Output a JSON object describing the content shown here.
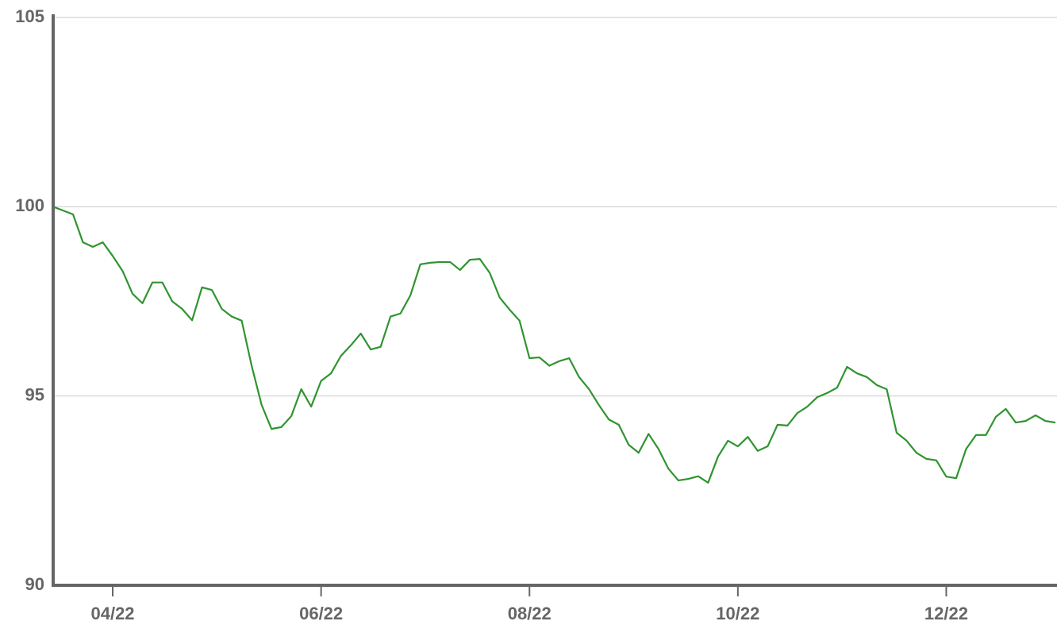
{
  "chart_data": {
    "type": "line",
    "categories": [
      null,
      null,
      null,
      null,
      null,
      null,
      "04/22",
      null,
      null,
      null,
      null,
      null,
      null,
      null,
      null,
      null,
      null,
      null,
      null,
      null,
      null,
      null,
      null,
      null,
      null,
      null,
      null,
      "06/22",
      null,
      null,
      null,
      null,
      null,
      null,
      null,
      null,
      null,
      null,
      null,
      null,
      null,
      null,
      null,
      null,
      null,
      null,
      null,
      null,
      "08/22",
      null,
      null,
      null,
      null,
      null,
      null,
      null,
      null,
      null,
      null,
      null,
      null,
      null,
      null,
      null,
      null,
      null,
      null,
      null,
      null,
      "10/22",
      null,
      null,
      null,
      null,
      null,
      null,
      null,
      null,
      null,
      null,
      null,
      null,
      null,
      null,
      null,
      null,
      null,
      null,
      null,
      null,
      "12/22",
      null,
      null,
      null,
      null,
      null,
      null,
      null,
      null,
      null,
      null,
      null
    ],
    "series": [
      {
        "color": "#2f9430",
        "values": [
          100.0,
          99.9,
          99.8,
          99.06,
          98.94,
          99.06,
          98.7,
          98.3,
          97.7,
          97.45,
          98.0,
          98.0,
          97.5,
          97.3,
          97.0,
          97.87,
          97.8,
          97.3,
          97.1,
          96.99,
          95.8,
          94.77,
          94.13,
          94.18,
          94.47,
          95.18,
          94.72,
          95.4,
          95.6,
          96.06,
          96.34,
          96.65,
          96.23,
          96.3,
          97.1,
          97.18,
          97.66,
          98.48,
          98.52,
          98.54,
          98.54,
          98.33,
          98.6,
          98.62,
          98.25,
          97.6,
          97.28,
          96.99,
          96.0,
          96.02,
          95.8,
          95.92,
          96.0,
          95.5,
          95.18,
          94.76,
          94.38,
          94.24,
          93.71,
          93.5,
          94.0,
          93.6,
          93.08,
          92.77,
          92.81,
          92.88,
          92.71,
          93.4,
          93.82,
          93.67,
          93.92,
          93.55,
          93.67,
          94.24,
          94.22,
          94.55,
          94.72,
          94.97,
          95.08,
          95.22,
          95.77,
          95.6,
          95.5,
          95.29,
          95.18,
          94.03,
          93.82,
          93.5,
          93.34,
          93.3,
          92.87,
          92.83,
          93.6,
          93.97,
          93.97,
          94.45,
          94.66,
          94.3,
          94.34,
          94.49,
          94.34,
          94.3
        ]
      }
    ],
    "ylim": [
      90,
      105
    ],
    "yticks": [
      90,
      95,
      100,
      105
    ],
    "grid": true
  }
}
